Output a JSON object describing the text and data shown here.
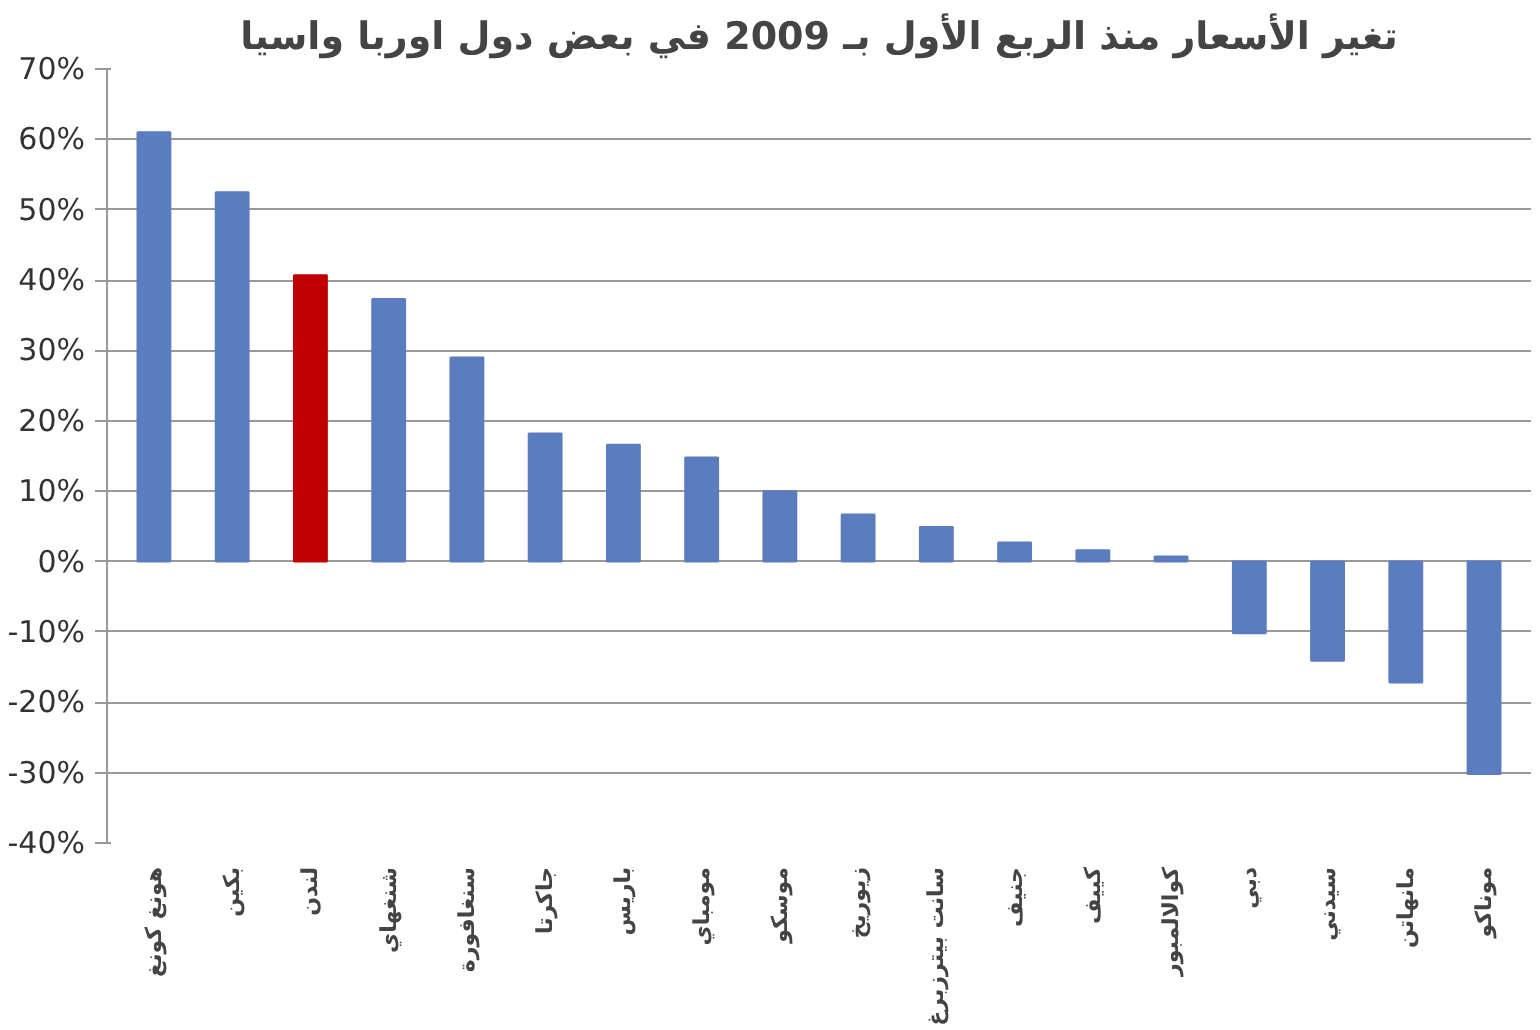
{
  "chart_data": {
    "type": "bar",
    "title": "تغير الأسعار منذ الربع الأول بـ 2009 في بعض دول اوربا واسيا",
    "categories": [
      "هونغ كونغ",
      "بكين",
      "لندن",
      "شنغهاي",
      "سنغافورة",
      "جاكرتا",
      "باريس",
      "مومباي",
      "موسكو",
      "زيوريخ",
      "سانت بيترزبرغ",
      "جنيف",
      "كييف",
      "كوالالمبور",
      "دبي",
      "سيدني",
      "مانهاتن",
      "موناكو"
    ],
    "values": [
      61,
      52.5,
      40.7,
      37.3,
      29,
      18.2,
      16.6,
      14.8,
      10,
      6.7,
      4.9,
      2.7,
      1.6,
      0.7,
      -10.2,
      -14.1,
      -17.2,
      -30.2
    ],
    "colors": [
      "#5b7dbf",
      "#5b7dbf",
      "#c00000",
      "#5b7dbf",
      "#5b7dbf",
      "#5b7dbf",
      "#5b7dbf",
      "#5b7dbf",
      "#5b7dbf",
      "#5b7dbf",
      "#5b7dbf",
      "#5b7dbf",
      "#5b7dbf",
      "#5b7dbf",
      "#5b7dbf",
      "#5b7dbf",
      "#5b7dbf",
      "#5b7dbf"
    ],
    "ylim": [
      -40,
      70
    ],
    "yticks": [
      {
        "value": -40,
        "label": "-40%"
      },
      {
        "value": -30,
        "label": "-30%"
      },
      {
        "value": -20,
        "label": "-20%"
      },
      {
        "value": -10,
        "label": "-10%"
      },
      {
        "value": 0,
        "label": "0%"
      },
      {
        "value": 10,
        "label": "10%"
      },
      {
        "value": 20,
        "label": "20%"
      },
      {
        "value": 30,
        "label": "30%"
      },
      {
        "value": 40,
        "label": "40%"
      },
      {
        "value": 50,
        "label": "50%"
      },
      {
        "value": 60,
        "label": "60%"
      },
      {
        "value": 70,
        "label": "70%"
      }
    ],
    "grid": "y"
  }
}
